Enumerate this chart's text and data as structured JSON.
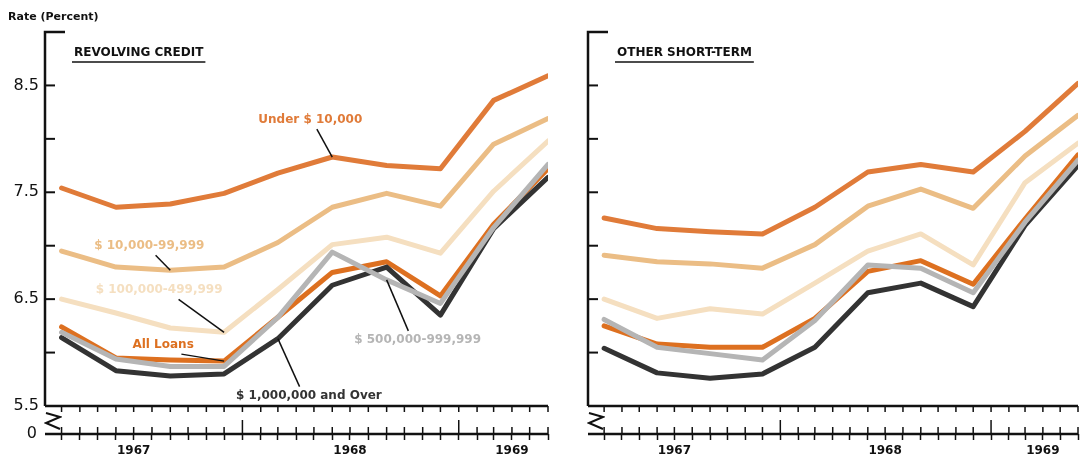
{
  "chart_data": [
    {
      "type": "line",
      "title": "REVOLVING CREDIT",
      "ylabel": "Rate (Percent)",
      "x": [
        "1967-03",
        "1967-06",
        "1967-09",
        "1967-12",
        "1968-03",
        "1968-06",
        "1968-09",
        "1968-12",
        "1969-03",
        "1969-06"
      ],
      "series": [
        {
          "name": "Under $ 10,000",
          "color": "#e07b39",
          "values": [
            7.54,
            7.36,
            7.39,
            7.49,
            7.68,
            7.83,
            7.75,
            7.72,
            8.36,
            8.59
          ]
        },
        {
          "name": "$ 10,000-99,999",
          "color": "#ebbd85",
          "values": [
            6.95,
            6.8,
            6.77,
            6.8,
            7.03,
            7.36,
            7.49,
            7.37,
            7.95,
            8.19
          ]
        },
        {
          "name": "$ 100,000-499,999",
          "color": "#f5dfc0",
          "values": [
            6.5,
            6.37,
            6.23,
            6.19,
            6.59,
            7.01,
            7.08,
            6.93,
            7.51,
            7.98
          ]
        },
        {
          "name": "$ 500,000-999,999",
          "color": "#b5b5b5",
          "values": [
            6.19,
            5.94,
            5.87,
            5.87,
            6.33,
            6.94,
            6.68,
            6.46,
            7.17,
            7.76
          ]
        },
        {
          "name": "$ 1,000,000 and Over",
          "color": "#333333",
          "values": [
            6.14,
            5.83,
            5.78,
            5.8,
            6.13,
            6.63,
            6.8,
            6.35,
            7.16,
            7.64
          ]
        },
        {
          "name": "All Loans",
          "color": "#dd7020",
          "values": [
            6.24,
            5.95,
            5.93,
            5.92,
            6.33,
            6.75,
            6.85,
            6.53,
            7.2,
            7.72
          ]
        }
      ],
      "xlim": [
        "1967-02",
        "1969-06"
      ],
      "xticks": [
        {
          "value": "1967-03",
          "label": null
        },
        {
          "value": "1967-04",
          "label": null
        },
        {
          "value": "1967-05",
          "label": null
        },
        {
          "value": "1967-06",
          "label": null
        },
        {
          "value": "1967-07",
          "label": "1967"
        },
        {
          "value": "1967-08",
          "label": null
        },
        {
          "value": "1967-09",
          "label": null
        },
        {
          "value": "1967-10",
          "label": null
        },
        {
          "value": "1967-11",
          "label": null
        },
        {
          "value": "1967-12",
          "label": null
        },
        {
          "value": "1968-01",
          "label": null
        },
        {
          "value": "1968-02",
          "label": null
        },
        {
          "value": "1968-03",
          "label": null
        },
        {
          "value": "1968-04",
          "label": null
        },
        {
          "value": "1968-05",
          "label": null
        },
        {
          "value": "1968-06",
          "label": null
        },
        {
          "value": "1968-07",
          "label": "1968"
        },
        {
          "value": "1968-08",
          "label": null
        },
        {
          "value": "1968-09",
          "label": null
        },
        {
          "value": "1968-10",
          "label": null
        },
        {
          "value": "1968-11",
          "label": null
        },
        {
          "value": "1968-12",
          "label": null
        },
        {
          "value": "1969-01",
          "label": null
        },
        {
          "value": "1969-02",
          "label": null
        },
        {
          "value": "1969-03",
          "label": null
        },
        {
          "value": "1969-04",
          "label": "1969"
        },
        {
          "value": "1969-05",
          "label": null
        },
        {
          "value": "1969-06",
          "label": null
        }
      ],
      "ylim": [
        5.5,
        9.0
      ],
      "yticks": [
        5.5,
        {
          "value": 6.0,
          "label": null
        },
        6.5,
        {
          "value": 7.0,
          "label": null
        },
        7.5,
        {
          "value": 8.0,
          "label": null
        },
        8.5
      ],
      "annotations": [
        "0"
      ],
      "grid": false,
      "legend": false,
      "marker": "none",
      "line_style": "solid"
    },
    {
      "type": "line",
      "title": "OTHER SHORT-TERM",
      "x": [
        "1967-03",
        "1967-06",
        "1967-09",
        "1967-12",
        "1968-03",
        "1968-06",
        "1968-09",
        "1968-12",
        "1969-03",
        "1969-06"
      ],
      "series": [
        {
          "color": "#e07b39",
          "values": [
            7.26,
            7.16,
            7.13,
            7.11,
            7.36,
            7.69,
            7.76,
            7.69,
            8.07,
            8.52
          ]
        },
        {
          "color": "#ebbd85",
          "values": [
            6.91,
            6.85,
            6.83,
            6.79,
            7.01,
            7.37,
            7.53,
            7.35,
            7.84,
            8.22
          ]
        },
        {
          "color": "#f5dfc0",
          "values": [
            6.5,
            6.32,
            6.41,
            6.36,
            6.65,
            6.95,
            7.11,
            6.82,
            7.59,
            7.96
          ]
        },
        {
          "color": "#b5b5b5",
          "values": [
            6.31,
            6.05,
            5.99,
            5.93,
            6.3,
            6.82,
            6.79,
            6.56,
            7.22,
            7.8
          ]
        },
        {
          "color": "#333333",
          "values": [
            6.04,
            5.81,
            5.76,
            5.8,
            6.05,
            6.56,
            6.65,
            6.43,
            7.19,
            7.75
          ]
        },
        {
          "color": "#dd7020",
          "values": [
            6.25,
            6.08,
            6.05,
            6.05,
            6.32,
            6.76,
            6.86,
            6.64,
            7.25,
            7.85
          ]
        }
      ],
      "xlim": [
        "1967-02",
        "1969-06"
      ],
      "xticks": [
        {
          "value": "1967-03",
          "label": null
        },
        {
          "value": "1967-04",
          "label": null
        },
        {
          "value": "1967-05",
          "label": null
        },
        {
          "value": "1967-06",
          "label": null
        },
        {
          "value": "1967-07",
          "label": "1967"
        },
        {
          "value": "1967-08",
          "label": null
        },
        {
          "value": "1967-09",
          "label": null
        },
        {
          "value": "1967-10",
          "label": null
        },
        {
          "value": "1967-11",
          "label": null
        },
        {
          "value": "1967-12",
          "label": null
        },
        {
          "value": "1968-01",
          "label": null
        },
        {
          "value": "1968-02",
          "label": null
        },
        {
          "value": "1968-03",
          "label": null
        },
        {
          "value": "1968-04",
          "label": null
        },
        {
          "value": "1968-05",
          "label": null
        },
        {
          "value": "1968-06",
          "label": null
        },
        {
          "value": "1968-07",
          "label": "1968"
        },
        {
          "value": "1968-08",
          "label": null
        },
        {
          "value": "1968-09",
          "label": null
        },
        {
          "value": "1968-10",
          "label": null
        },
        {
          "value": "1968-11",
          "label": null
        },
        {
          "value": "1968-12",
          "label": null
        },
        {
          "value": "1969-01",
          "label": null
        },
        {
          "value": "1969-02",
          "label": null
        },
        {
          "value": "1969-03",
          "label": null
        },
        {
          "value": "1969-04",
          "label": "1969"
        },
        {
          "value": "1969-05",
          "label": null
        },
        {
          "value": "1969-06",
          "label": null
        }
      ],
      "ylim": [
        5.5,
        9.0
      ],
      "yticks": [
        5.5,
        {
          "value": 6.0,
          "label": null
        },
        6.5,
        {
          "value": 7.0,
          "label": null
        },
        7.5,
        {
          "value": 8.0,
          "label": null
        },
        8.5
      ],
      "tick_labels": "x",
      "grid": false,
      "legend": false,
      "marker": "none",
      "line_style": "solid"
    }
  ]
}
